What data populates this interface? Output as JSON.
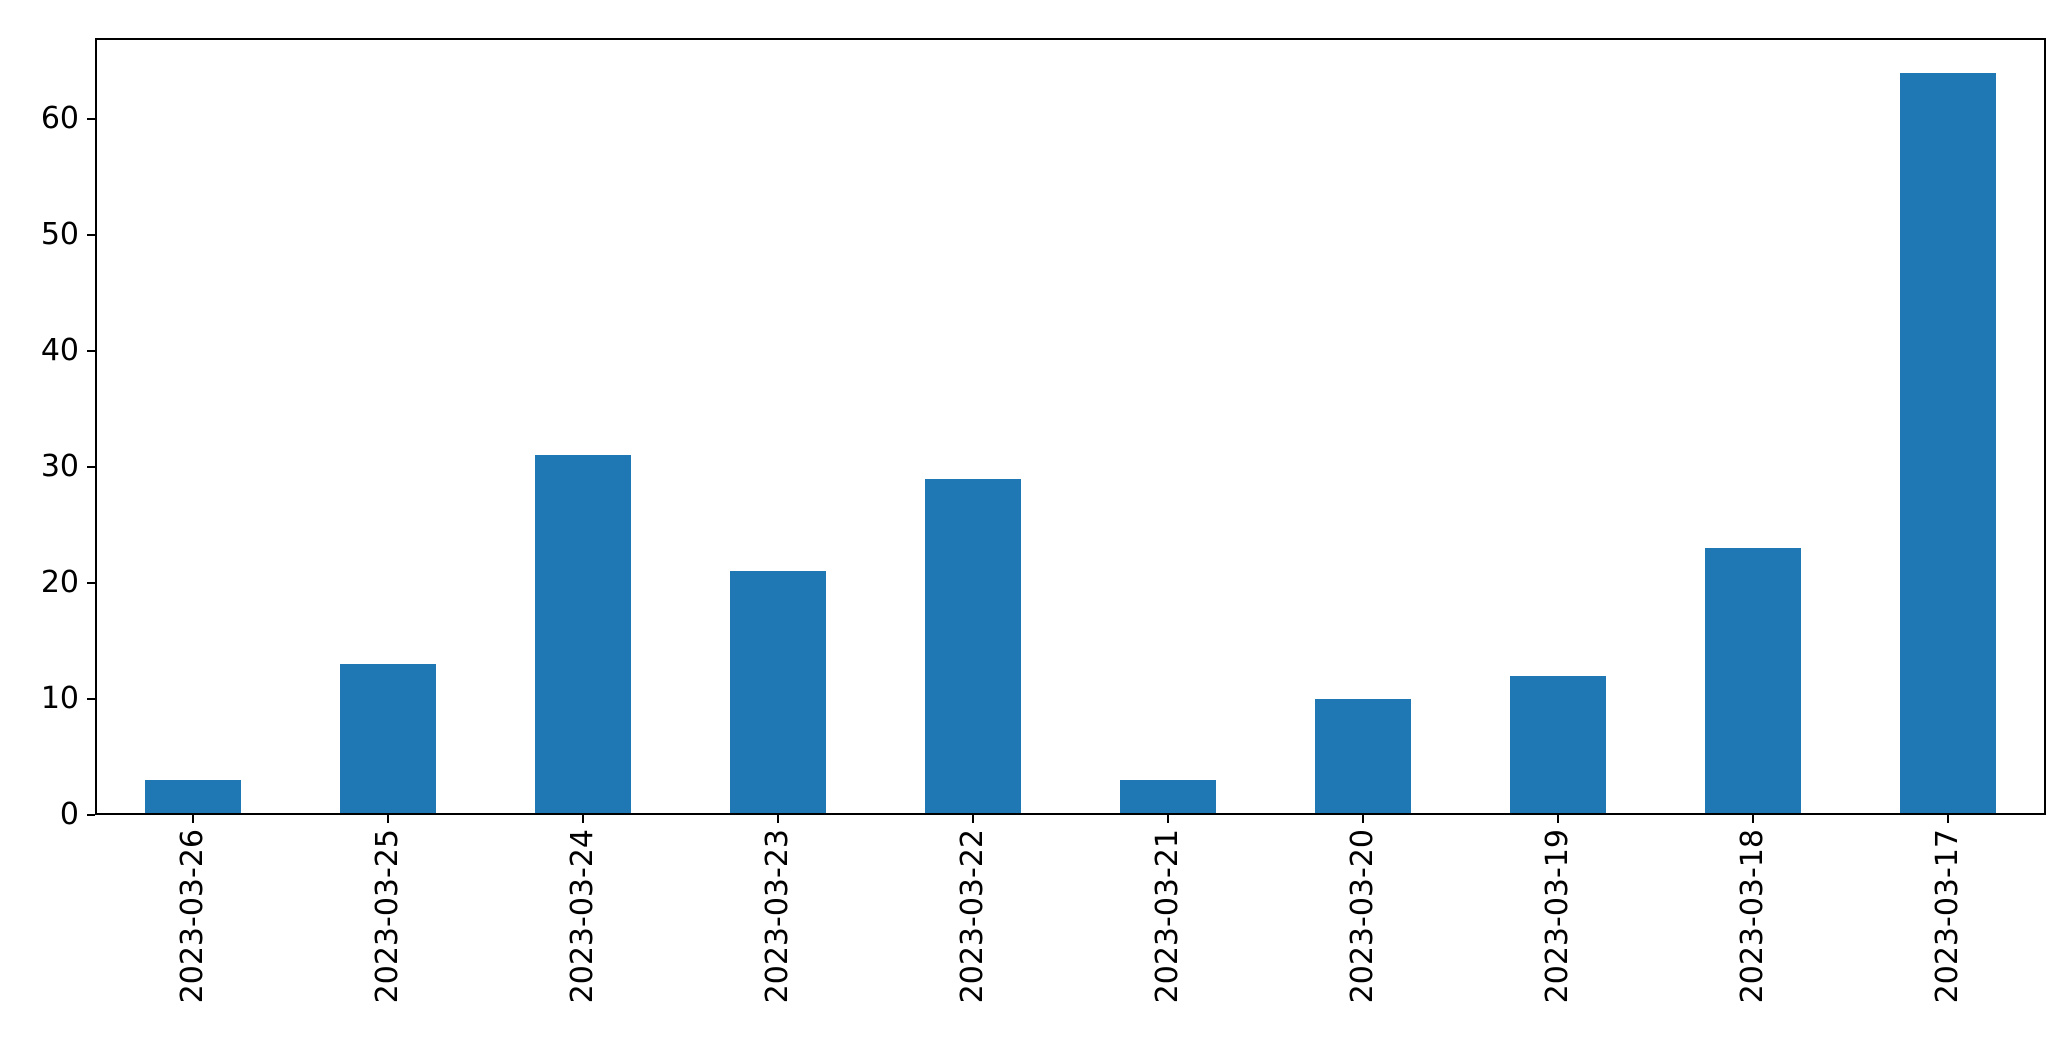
{
  "chart_data": {
    "type": "bar",
    "title": "",
    "xlabel": "",
    "ylabel": "",
    "categories": [
      "2023-03-26",
      "2023-03-25",
      "2023-03-24",
      "2023-03-23",
      "2023-03-22",
      "2023-03-21",
      "2023-03-20",
      "2023-03-19",
      "2023-03-18",
      "2023-03-17"
    ],
    "values": [
      3,
      13,
      31,
      21,
      29,
      3,
      10,
      12,
      23,
      64
    ],
    "ylim": [
      0,
      67
    ],
    "yticks": [
      0,
      10,
      20,
      30,
      40,
      50,
      60
    ],
    "bar_color": "#1f77b4",
    "grid": false,
    "legend": null,
    "background_color": "#ffffff",
    "spine_color": "#000000"
  }
}
